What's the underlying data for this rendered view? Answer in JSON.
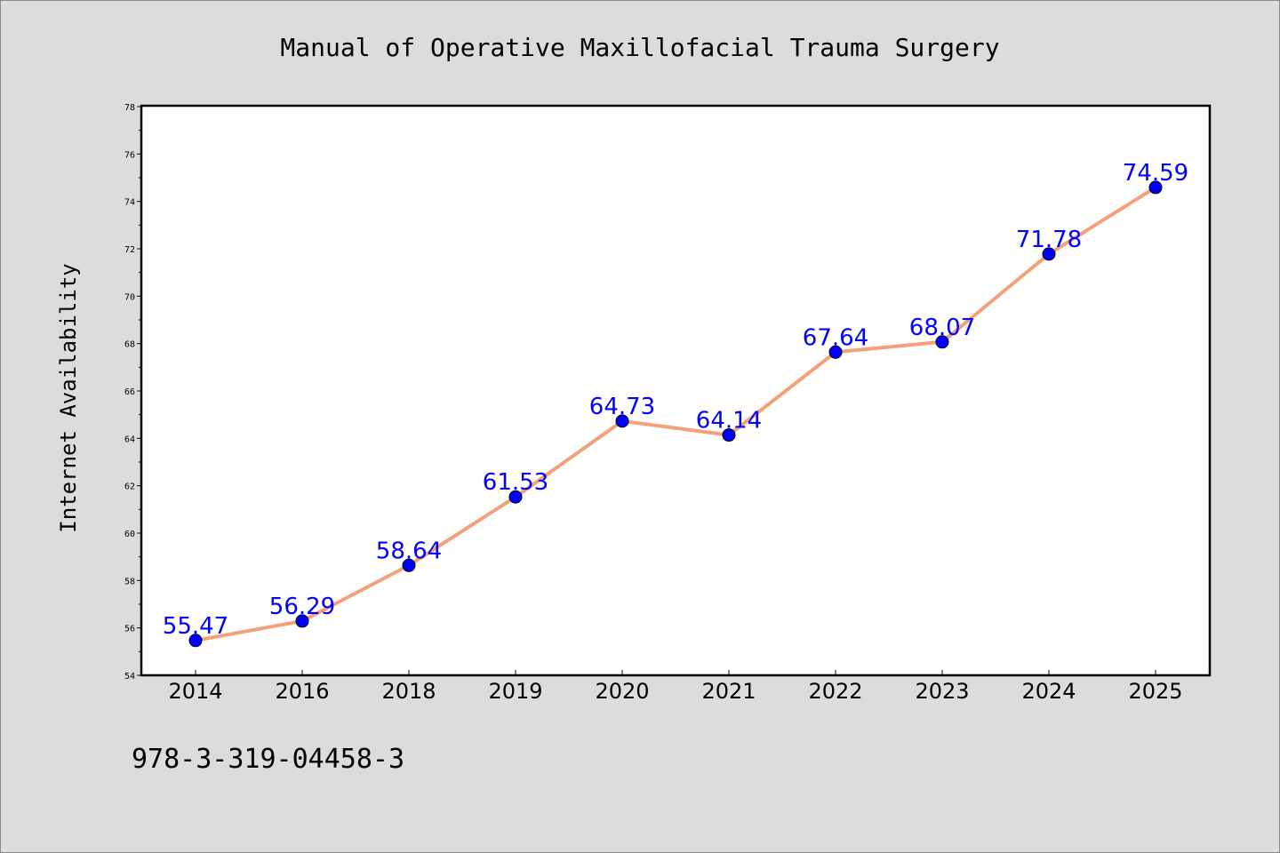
{
  "chart_data": {
    "type": "line",
    "title": "Manual of Operative Maxillofacial Trauma Surgery",
    "xlabel": "",
    "ylabel": "Internet Availability",
    "categories": [
      "2014",
      "2016",
      "2018",
      "2019",
      "2020",
      "2021",
      "2022",
      "2023",
      "2024",
      "2025"
    ],
    "series": [
      {
        "values": [
          55.47,
          56.29,
          58.64,
          61.53,
          64.73,
          64.14,
          67.64,
          68.07,
          71.78,
          74.59
        ],
        "labels": [
          "55.47",
          "56.29",
          "58.64",
          "61.53",
          "64.73",
          "64.14",
          "67.64",
          "68.07",
          "71.78",
          "74.59"
        ],
        "line_color": "#f4a07a",
        "marker_color": "#0000ff"
      }
    ],
    "ylim": [
      54,
      78
    ],
    "yticks": [
      "54",
      "56",
      "58",
      "60",
      "62",
      "64",
      "66",
      "68",
      "70",
      "72",
      "74",
      "76",
      "78"
    ],
    "grid": false,
    "legend": "none",
    "plot_background": "#ffffff",
    "figure_background": "#dcdcdc",
    "data_label_color": "#0000ff"
  },
  "footer": {
    "text": "978-3-319-04458-3"
  }
}
